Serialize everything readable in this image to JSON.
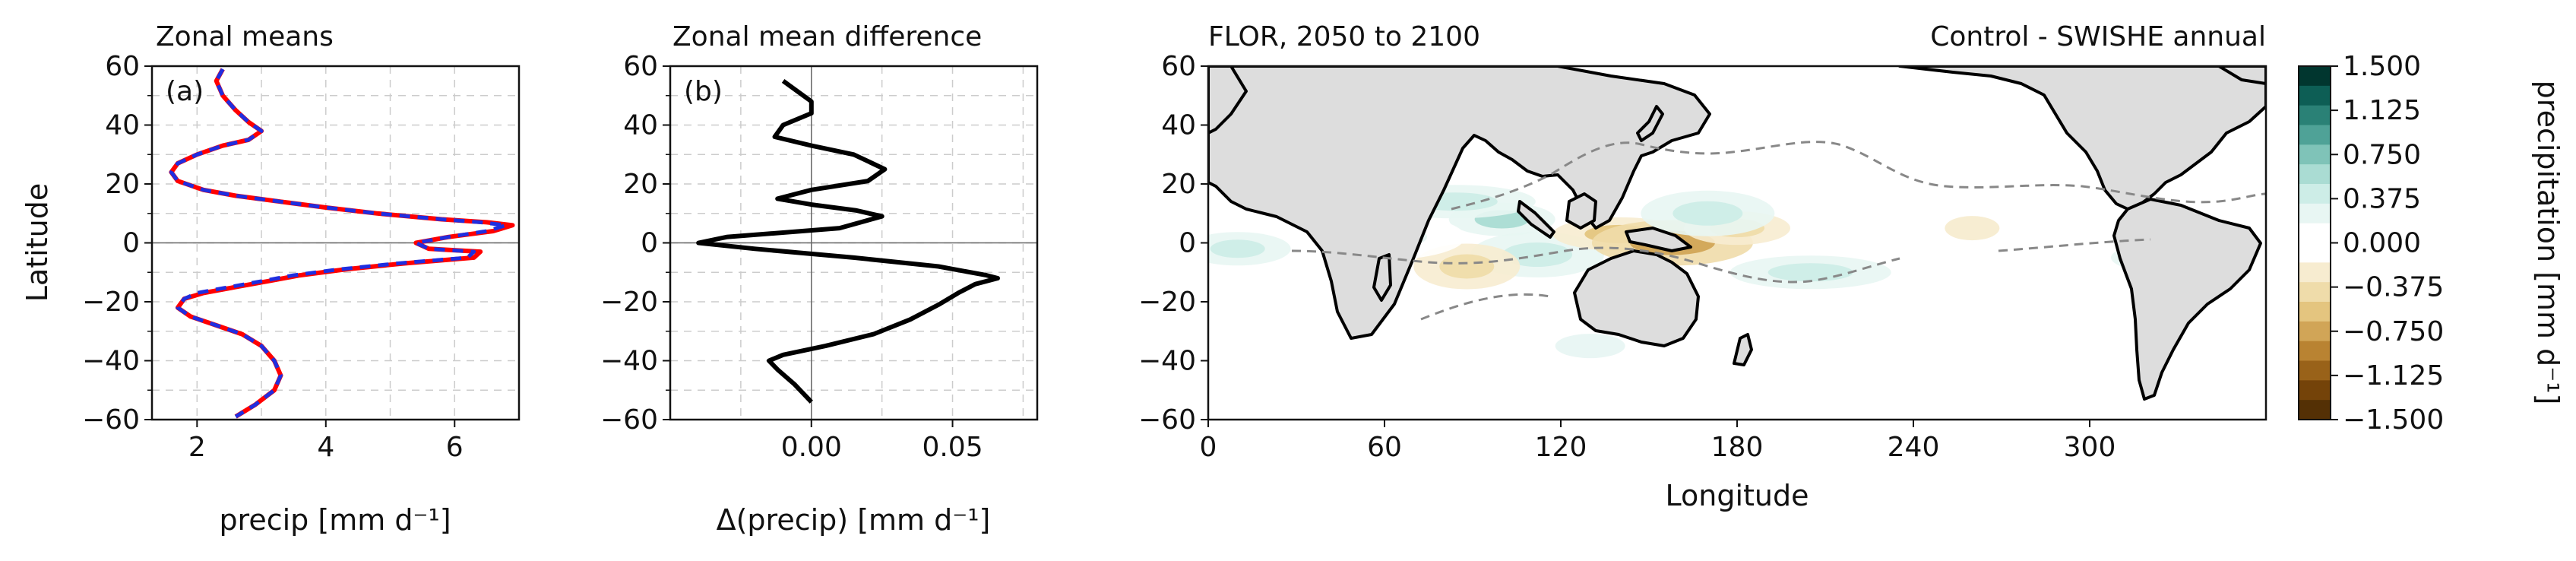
{
  "chart_data": [
    {
      "type": "line",
      "title": "Zonal means",
      "panel_label": "(a)",
      "xlabel": "precip [mm d⁻¹]",
      "ylabel": "Latitude",
      "xlim": [
        1.3,
        7.0
      ],
      "ylim": [
        -60,
        60
      ],
      "x_ticks": [
        2,
        4,
        6
      ],
      "x_tick_labels": [
        "2",
        "4",
        "6"
      ],
      "y_ticks": [
        -60,
        -40,
        -20,
        0,
        20,
        40,
        60
      ],
      "y_tick_labels": [
        "−60",
        "−40",
        "−20",
        "0",
        "20",
        "40",
        "60"
      ],
      "grid": true,
      "series": [
        {
          "color": "#ff0000",
          "style": "solid",
          "points": [
            [
              2.4,
              59
            ],
            [
              2.3,
              55
            ],
            [
              2.4,
              50
            ],
            [
              2.6,
              45
            ],
            [
              2.8,
              41
            ],
            [
              3.0,
              38
            ],
            [
              2.8,
              35
            ],
            [
              2.4,
              33
            ],
            [
              2.0,
              30
            ],
            [
              1.7,
              27
            ],
            [
              1.6,
              24
            ],
            [
              1.7,
              21
            ],
            [
              2.1,
              18
            ],
            [
              2.6,
              16
            ],
            [
              3.3,
              14
            ],
            [
              4.0,
              12
            ],
            [
              4.8,
              10
            ],
            [
              5.8,
              8
            ],
            [
              6.5,
              7
            ],
            [
              6.9,
              6
            ],
            [
              6.6,
              4
            ],
            [
              5.9,
              2
            ],
            [
              5.4,
              0
            ],
            [
              5.6,
              -2
            ],
            [
              6.4,
              -3
            ],
            [
              6.3,
              -5
            ],
            [
              5.2,
              -7
            ],
            [
              4.3,
              -9
            ],
            [
              3.6,
              -11
            ],
            [
              3.1,
              -13
            ],
            [
              2.6,
              -15
            ],
            [
              2.1,
              -17
            ],
            [
              1.8,
              -19
            ],
            [
              1.7,
              -22
            ],
            [
              1.9,
              -25
            ],
            [
              2.3,
              -28
            ],
            [
              2.7,
              -31
            ],
            [
              3.0,
              -35
            ],
            [
              3.2,
              -40
            ],
            [
              3.3,
              -45
            ],
            [
              3.2,
              -50
            ],
            [
              2.9,
              -55
            ],
            [
              2.6,
              -59
            ]
          ]
        },
        {
          "color": "#1f2ee0",
          "style": "dashed",
          "points": [
            [
              2.4,
              59
            ],
            [
              2.3,
              55
            ],
            [
              2.4,
              50
            ],
            [
              2.6,
              45
            ],
            [
              2.8,
              41
            ],
            [
              3.0,
              38
            ],
            [
              2.8,
              35
            ],
            [
              2.4,
              33
            ],
            [
              2.0,
              30
            ],
            [
              1.7,
              27
            ],
            [
              1.6,
              24
            ],
            [
              1.7,
              21
            ],
            [
              2.1,
              18
            ],
            [
              2.6,
              16
            ],
            [
              3.3,
              14
            ],
            [
              4.0,
              12
            ],
            [
              4.8,
              10
            ],
            [
              5.8,
              8
            ],
            [
              6.4,
              7
            ],
            [
              6.8,
              6
            ],
            [
              6.5,
              4
            ],
            [
              5.9,
              2
            ],
            [
              5.4,
              0
            ],
            [
              5.6,
              -2
            ],
            [
              6.3,
              -3
            ],
            [
              6.2,
              -5
            ],
            [
              5.1,
              -7
            ],
            [
              4.2,
              -9
            ],
            [
              3.5,
              -11
            ],
            [
              3.0,
              -13
            ],
            [
              2.5,
              -15
            ],
            [
              2.0,
              -17
            ],
            [
              1.8,
              -19
            ],
            [
              1.7,
              -22
            ],
            [
              1.9,
              -25
            ],
            [
              2.3,
              -28
            ],
            [
              2.7,
              -31
            ],
            [
              3.0,
              -35
            ],
            [
              3.2,
              -40
            ],
            [
              3.3,
              -45
            ],
            [
              3.2,
              -50
            ],
            [
              2.9,
              -55
            ],
            [
              2.6,
              -59
            ]
          ]
        }
      ]
    },
    {
      "type": "line",
      "title": "Zonal mean difference",
      "panel_label": "(b)",
      "xlabel": "Δ(precip) [mm d⁻¹]",
      "ylabel": "",
      "xlim": [
        -0.05,
        0.08
      ],
      "ylim": [
        -60,
        60
      ],
      "x_ticks": [
        0.0,
        0.05
      ],
      "x_tick_labels": [
        "0.00",
        "0.05"
      ],
      "y_ticks": [
        -60,
        -40,
        -20,
        0,
        20,
        40,
        60
      ],
      "y_tick_labels": [
        "−60",
        "−40",
        "−20",
        "0",
        "20",
        "40",
        "60"
      ],
      "grid": true,
      "series": [
        {
          "color": "#000000",
          "style": "solid",
          "points": [
            [
              -0.01,
              55
            ],
            [
              0.0,
              48
            ],
            [
              0.0,
              44
            ],
            [
              -0.01,
              40
            ],
            [
              -0.013,
              36
            ],
            [
              0.0,
              33
            ],
            [
              0.015,
              30
            ],
            [
              0.026,
              25
            ],
            [
              0.02,
              21
            ],
            [
              0.0,
              18
            ],
            [
              -0.012,
              15
            ],
            [
              0.0,
              13
            ],
            [
              0.016,
              11
            ],
            [
              0.025,
              9
            ],
            [
              0.01,
              5
            ],
            [
              -0.03,
              2
            ],
            [
              -0.04,
              0
            ],
            [
              -0.02,
              -2
            ],
            [
              0.015,
              -5
            ],
            [
              0.045,
              -8
            ],
            [
              0.062,
              -11
            ],
            [
              0.066,
              -12
            ],
            [
              0.058,
              -14
            ],
            [
              0.052,
              -17
            ],
            [
              0.045,
              -21
            ],
            [
              0.035,
              -26
            ],
            [
              0.022,
              -31
            ],
            [
              0.005,
              -35
            ],
            [
              -0.01,
              -38
            ],
            [
              -0.015,
              -40
            ],
            [
              -0.012,
              -43
            ],
            [
              -0.006,
              -48
            ],
            [
              0.0,
              -54
            ]
          ]
        }
      ]
    },
    {
      "type": "heatmap",
      "title": "FLOR, 2050 to 2100",
      "title_right": "Control - SWISHE annual",
      "xlabel": "Longitude",
      "ylabel": "",
      "xlim": [
        0,
        360
      ],
      "ylim": [
        -60,
        60
      ],
      "x_ticks": [
        0,
        60,
        120,
        180,
        240,
        300
      ],
      "x_tick_labels": [
        "0",
        "60",
        "120",
        "180",
        "240",
        "300"
      ],
      "y_ticks": [
        -60,
        -40,
        -20,
        0,
        20,
        40,
        60
      ],
      "y_tick_labels": [
        "−60",
        "−40",
        "−20",
        "0",
        "20",
        "40",
        "60"
      ],
      "land_color": "#dddddd",
      "colorbar": {
        "label": "precipitation [mm d⁻¹]",
        "range": [
          -1.5,
          1.5
        ],
        "tick_labels": [
          "1.500",
          "1.125",
          "0.750",
          "0.375",
          "0.000",
          "−0.375",
          "−0.750",
          "−1.125",
          "−1.500"
        ],
        "colors": [
          "#01362f",
          "#0d5e55",
          "#2a8176",
          "#4fa297",
          "#7fc3b8",
          "#aadcd3",
          "#cdede7",
          "#e8f6f3",
          "#ffffff",
          "#ffffff",
          "#f7ecd0",
          "#efdcaa",
          "#e4c57f",
          "#d1a557",
          "#b98332",
          "#996219",
          "#744309",
          "#543005"
        ]
      },
      "regions": [
        {
          "lon": 100,
          "lat": 8,
          "value": 0.6
        },
        {
          "lon": 112,
          "lat": -4,
          "value": 0.5
        },
        {
          "lon": 84,
          "lat": 14,
          "value": 0.4
        },
        {
          "lon": 88,
          "lat": -8,
          "value": -0.4
        },
        {
          "lon": 140,
          "lat": 3,
          "value": -0.5
        },
        {
          "lon": 158,
          "lat": 0,
          "value": -0.8
        },
        {
          "lon": 180,
          "lat": 5,
          "value": -0.4
        },
        {
          "lon": 170,
          "lat": 10,
          "value": 0.4
        },
        {
          "lon": 205,
          "lat": -10,
          "value": 0.4
        },
        {
          "lon": 260,
          "lat": 5,
          "value": -0.3
        },
        {
          "lon": 330,
          "lat": -5,
          "value": 0.4
        },
        {
          "lon": 60,
          "lat": 2,
          "value": 0.3
        },
        {
          "lon": 10,
          "lat": -2,
          "value": 0.4
        },
        {
          "lon": 130,
          "lat": -35,
          "value": 0.3
        }
      ]
    }
  ]
}
